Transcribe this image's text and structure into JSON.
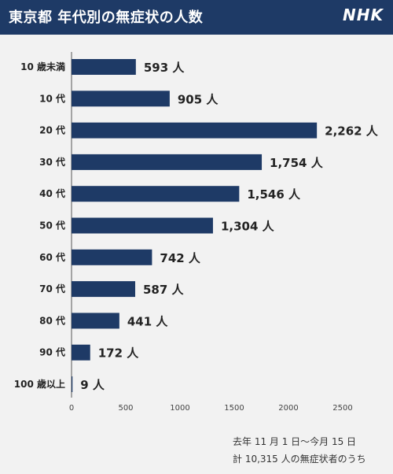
{
  "header": {
    "title": "東京都 年代別の無症状の人数",
    "logo": "NHK"
  },
  "chart_data": {
    "type": "bar",
    "orientation": "horizontal",
    "categories": [
      "10 歳未満",
      "10 代",
      "20 代",
      "30 代",
      "40 代",
      "50 代",
      "60 代",
      "70 代",
      "80 代",
      "90 代",
      "100 歳以上"
    ],
    "values": [
      593,
      905,
      2262,
      1754,
      1546,
      1304,
      742,
      587,
      441,
      172,
      9
    ],
    "value_labels": [
      "593 人",
      "905 人",
      "2,262 人",
      "1,754 人",
      "1,546 人",
      "1,304 人",
      "742 人",
      "587 人",
      "441 人",
      "172 人",
      "9 人"
    ],
    "xlim": [
      0,
      2500
    ],
    "xticks": [
      0,
      500,
      1000,
      1500,
      2000,
      2500
    ],
    "grid": false,
    "bar_color": "#1e3a66"
  },
  "footnote": {
    "line1": "去年 11 月 1 日〜今月 15 日",
    "line2": "計 10,315 人の無症状者のうち"
  }
}
